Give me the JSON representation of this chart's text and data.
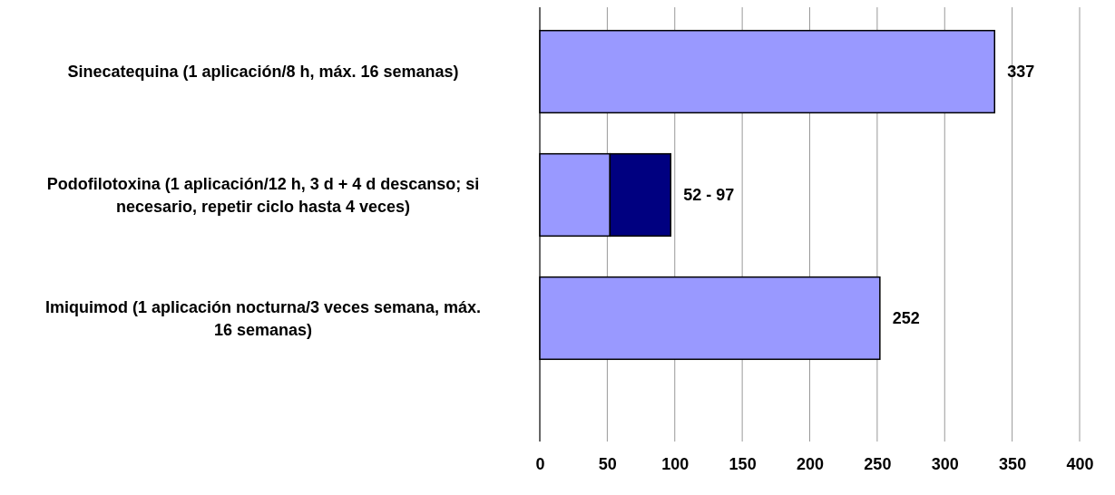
{
  "chart_data": {
    "type": "bar",
    "orientation": "horizontal",
    "stacked": true,
    "categories": [
      "Sinecatequina (1 aplicación/8 h, máx. 16 semanas)",
      "Podofilotoxina (1 aplicación/12 h, 3 d + 4 d descanso; si necesario, repetir ciclo hasta 4 veces)",
      "Imiquimod (1 aplicación nocturna/3 veces semana, máx. 16 semanas)"
    ],
    "series": [
      {
        "color": "#9999ff",
        "values": [
          337,
          52,
          252
        ]
      },
      {
        "color": "#000080",
        "values": [
          null,
          45,
          null
        ]
      }
    ],
    "totals": [
      "337",
      "52 - 97",
      "252"
    ],
    "xlim": [
      0,
      400
    ],
    "xticks": [
      0,
      50,
      100,
      150,
      200,
      250,
      300,
      350,
      400
    ],
    "grid": "x"
  }
}
